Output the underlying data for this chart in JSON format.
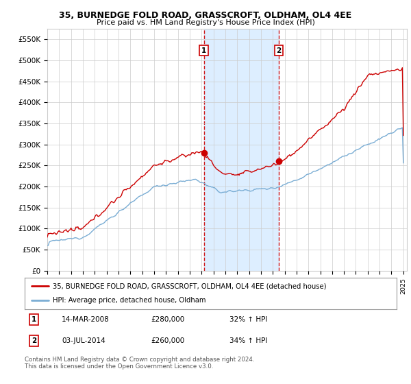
{
  "title": "35, BURNEDGE FOLD ROAD, GRASSCROFT, OLDHAM, OL4 4EE",
  "subtitle": "Price paid vs. HM Land Registry's House Price Index (HPI)",
  "ylim": [
    0,
    575000
  ],
  "yticks": [
    0,
    50000,
    100000,
    150000,
    200000,
    250000,
    300000,
    350000,
    400000,
    450000,
    500000,
    550000
  ],
  "ytick_labels": [
    "£0",
    "£50K",
    "£100K",
    "£150K",
    "£200K",
    "£250K",
    "£300K",
    "£350K",
    "£400K",
    "£450K",
    "£500K",
    "£550K"
  ],
  "sale1_year": 2008.2,
  "sale1_price": 280000,
  "sale1_label": "1",
  "sale2_year": 2014.5,
  "sale2_price": 260000,
  "sale2_label": "2",
  "red_line_color": "#cc0000",
  "blue_line_color": "#7aadd4",
  "shade_color": "#ddeeff",
  "vline_color": "#cc0000",
  "legend1": "35, BURNEDGE FOLD ROAD, GRASSCROFT, OLDHAM, OL4 4EE (detached house)",
  "legend2": "HPI: Average price, detached house, Oldham",
  "table_row1_num": "1",
  "table_row1_date": "14-MAR-2008",
  "table_row1_price": "£280,000",
  "table_row1_hpi": "32% ↑ HPI",
  "table_row2_num": "2",
  "table_row2_date": "03-JUL-2014",
  "table_row2_price": "£260,000",
  "table_row2_hpi": "34% ↑ HPI",
  "footnote": "Contains HM Land Registry data © Crown copyright and database right 2024.\nThis data is licensed under the Open Government Licence v3.0.",
  "bg_color": "#ffffff",
  "grid_color": "#cccccc",
  "title_fontsize": 9,
  "subtitle_fontsize": 8
}
